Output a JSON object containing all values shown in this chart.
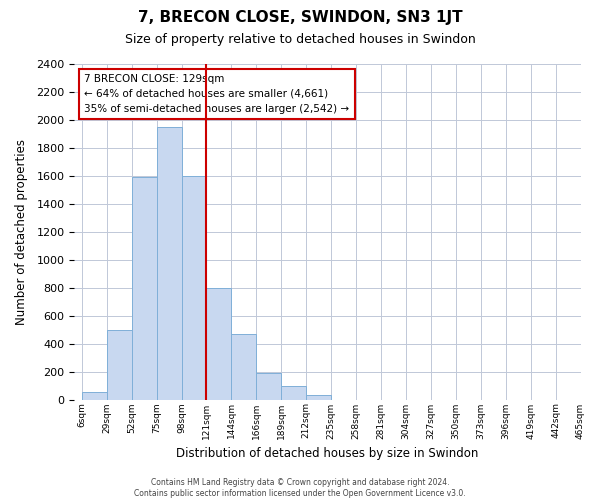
{
  "title": "7, BRECON CLOSE, SWINDON, SN3 1JT",
  "subtitle": "Size of property relative to detached houses in Swindon",
  "xlabel": "Distribution of detached houses by size in Swindon",
  "ylabel": "Number of detached properties",
  "footer_lines": [
    "Contains HM Land Registry data © Crown copyright and database right 2024.",
    "Contains public sector information licensed under the Open Government Licence v3.0."
  ],
  "bin_labels": [
    "6sqm",
    "29sqm",
    "52sqm",
    "75sqm",
    "98sqm",
    "121sqm",
    "144sqm",
    "166sqm",
    "189sqm",
    "212sqm",
    "235sqm",
    "258sqm",
    "281sqm",
    "304sqm",
    "327sqm",
    "350sqm",
    "373sqm",
    "396sqm",
    "419sqm",
    "442sqm",
    "465sqm"
  ],
  "bar_values": [
    55,
    500,
    1590,
    1950,
    1600,
    800,
    470,
    190,
    95,
    35,
    0,
    0,
    0,
    0,
    0,
    0,
    0,
    0,
    0,
    0
  ],
  "bar_color": "#c8d8f0",
  "bar_edge_color": "#7fafd8",
  "vline_x": 5,
  "vline_color": "#cc0000",
  "annotation_title": "7 BRECON CLOSE: 129sqm",
  "annotation_line1": "← 64% of detached houses are smaller (4,661)",
  "annotation_line2": "35% of semi-detached houses are larger (2,542) →",
  "annotation_box_color": "#ffffff",
  "annotation_box_edge": "#cc0000",
  "ylim": [
    0,
    2400
  ],
  "yticks": [
    0,
    200,
    400,
    600,
    800,
    1000,
    1200,
    1400,
    1600,
    1800,
    2000,
    2200,
    2400
  ],
  "background_color": "#ffffff",
  "grid_color": "#c0c8d8"
}
